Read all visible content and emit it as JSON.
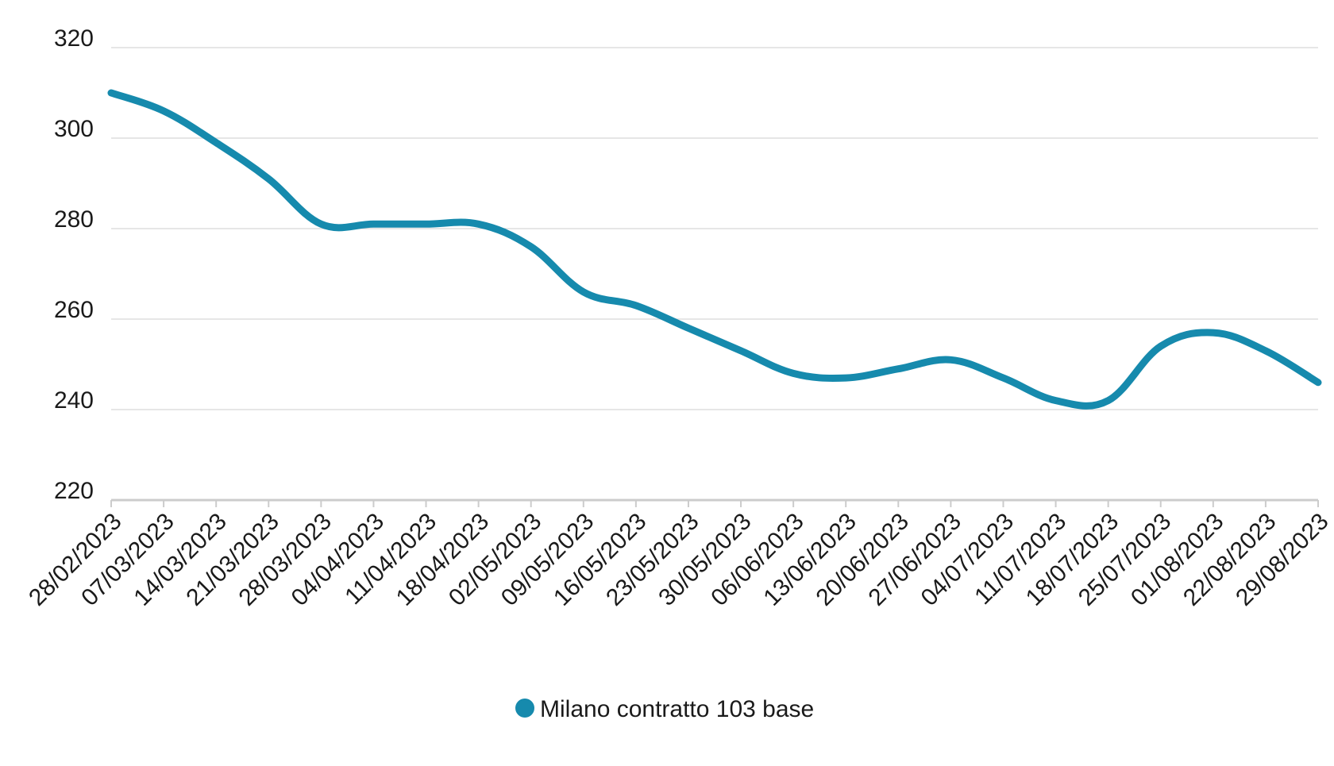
{
  "chart_data": {
    "type": "line",
    "title": "",
    "xlabel": "",
    "ylabel": "",
    "ylim": [
      220,
      320
    ],
    "yticks": [
      "220",
      "240",
      "260",
      "280",
      "300",
      "320"
    ],
    "grid": true,
    "line_color": "#168aad",
    "grid_color": "#dddddd",
    "axis_color": "#cccccc",
    "categories": [
      "28/02/2023",
      "07/03/2023",
      "14/03/2023",
      "21/03/2023",
      "28/03/2023",
      "04/04/2023",
      "11/04/2023",
      "18/04/2023",
      "02/05/2023",
      "09/05/2023",
      "16/05/2023",
      "23/05/2023",
      "30/05/2023",
      "06/06/2023",
      "13/06/2023",
      "20/06/2023",
      "27/06/2023",
      "04/07/2023",
      "11/07/2023",
      "18/07/2023",
      "25/07/2023",
      "01/08/2023",
      "22/08/2023",
      "29/08/2023"
    ],
    "series": [
      {
        "name": "Milano contratto 103 base",
        "values": [
          310,
          306,
          299,
          291,
          281,
          281,
          281,
          281,
          276,
          266,
          263,
          258,
          253,
          248,
          247,
          249,
          251,
          247,
          242,
          242,
          254,
          257,
          253,
          246
        ]
      }
    ],
    "legend": {
      "position": "bottom-center",
      "label": "Milano contratto 103 base"
    }
  }
}
